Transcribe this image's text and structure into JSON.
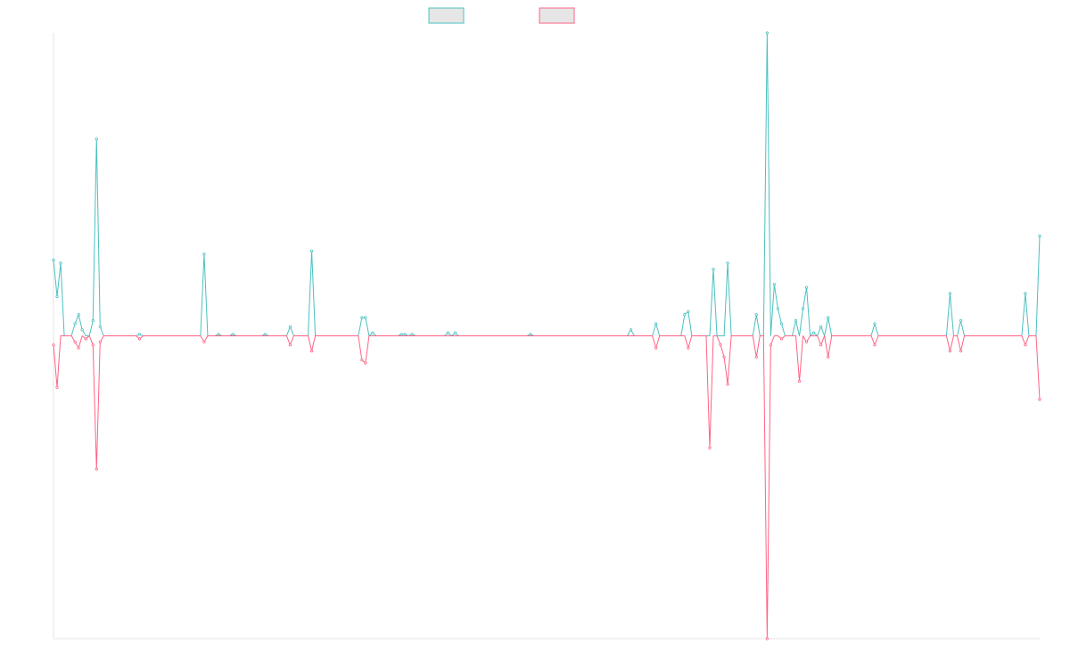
{
  "chart_data": {
    "type": "line",
    "title": "",
    "xlabel": "",
    "ylabel": "",
    "grid": false,
    "legend_position": "top-center",
    "colors": {
      "series_a": "#4bc0c0",
      "series_b": "#ff6384",
      "legend_fill": "#e6e6e6",
      "axis": "#e5e5e5"
    },
    "ylim": [
      -10,
      10
    ],
    "x_count": 276,
    "series": [
      {
        "name": "",
        "color": "#4bc0c0",
        "spikes": [
          [
            0,
            2.5
          ],
          [
            1,
            1.3
          ],
          [
            2,
            2.4
          ],
          [
            6,
            0.4
          ],
          [
            7,
            0.7
          ],
          [
            8,
            0.2
          ],
          [
            11,
            0.5
          ],
          [
            12,
            6.5
          ],
          [
            13,
            0.3
          ],
          [
            24,
            0.05
          ],
          [
            42,
            2.7
          ],
          [
            46,
            0.05
          ],
          [
            50,
            0.05
          ],
          [
            59,
            0.05
          ],
          [
            66,
            0.3
          ],
          [
            72,
            2.8
          ],
          [
            86,
            0.6
          ],
          [
            87,
            0.6
          ],
          [
            89,
            0.1
          ],
          [
            97,
            0.05
          ],
          [
            98,
            0.05
          ],
          [
            100,
            0.05
          ],
          [
            110,
            0.1
          ],
          [
            112,
            0.1
          ],
          [
            133,
            0.05
          ],
          [
            161,
            0.2
          ],
          [
            168,
            0.4
          ],
          [
            176,
            0.7
          ],
          [
            177,
            0.8
          ],
          [
            184,
            2.2
          ],
          [
            188,
            2.4
          ],
          [
            196,
            0.7
          ],
          [
            199,
            10
          ],
          [
            201,
            1.7
          ],
          [
            202,
            0.9
          ],
          [
            203,
            0.4
          ],
          [
            207,
            0.5
          ],
          [
            209,
            0.9
          ],
          [
            210,
            1.6
          ],
          [
            212,
            0.1
          ],
          [
            214,
            0.3
          ],
          [
            216,
            0.6
          ],
          [
            229,
            0.4
          ],
          [
            250,
            1.4
          ],
          [
            253,
            0.5
          ],
          [
            271,
            1.4
          ],
          [
            275,
            3.3
          ]
        ]
      },
      {
        "name": "",
        "color": "#ff6384",
        "spikes": [
          [
            0,
            -0.3
          ],
          [
            1,
            -1.7
          ],
          [
            6,
            -0.2
          ],
          [
            7,
            -0.4
          ],
          [
            9,
            -0.1
          ],
          [
            11,
            -0.3
          ],
          [
            12,
            -4.4
          ],
          [
            13,
            -0.2
          ],
          [
            24,
            -0.1
          ],
          [
            42,
            -0.2
          ],
          [
            66,
            -0.3
          ],
          [
            72,
            -0.5
          ],
          [
            86,
            -0.8
          ],
          [
            87,
            -0.9
          ],
          [
            168,
            -0.4
          ],
          [
            177,
            -0.4
          ],
          [
            183,
            -3.7
          ],
          [
            186,
            -0.3
          ],
          [
            187,
            -0.7
          ],
          [
            188,
            -1.6
          ],
          [
            196,
            -0.7
          ],
          [
            199,
            -10
          ],
          [
            200,
            -0.3
          ],
          [
            203,
            -0.1
          ],
          [
            208,
            -1.5
          ],
          [
            210,
            -0.2
          ],
          [
            214,
            -0.3
          ],
          [
            216,
            -0.7
          ],
          [
            229,
            -0.3
          ],
          [
            250,
            -0.5
          ],
          [
            253,
            -0.5
          ],
          [
            271,
            -0.3
          ],
          [
            275,
            -2.1
          ]
        ]
      }
    ]
  }
}
